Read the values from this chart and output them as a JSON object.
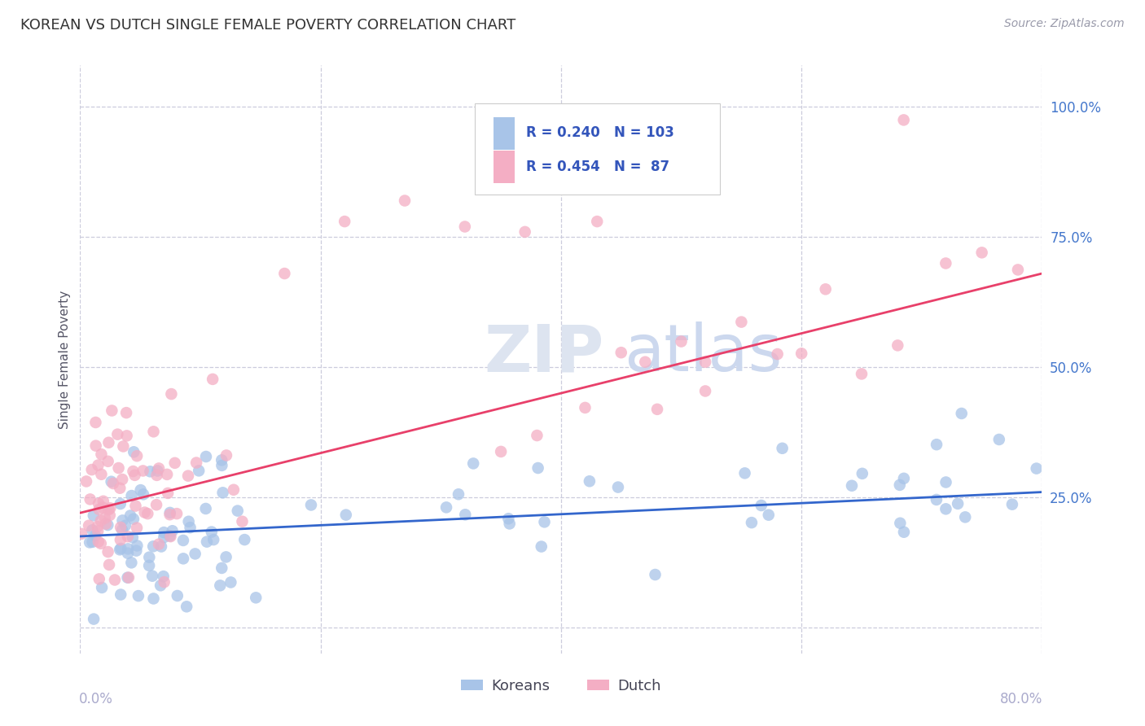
{
  "title": "KOREAN VS DUTCH SINGLE FEMALE POVERTY CORRELATION CHART",
  "source": "Source: ZipAtlas.com",
  "ylabel": "Single Female Poverty",
  "watermark": "ZIPatlas",
  "korean_R": 0.24,
  "korean_N": 103,
  "dutch_R": 0.454,
  "dutch_N": 87,
  "korean_color": "#a8c4e8",
  "dutch_color": "#f4aec4",
  "korean_line_color": "#3366cc",
  "dutch_line_color": "#e8406a",
  "background_color": "#ffffff",
  "grid_color": "#ccccdd",
  "title_color": "#333333",
  "legend_text_color": "#3355bb",
  "right_label_color": "#4477cc",
  "xlim": [
    0.0,
    0.8
  ],
  "ylim": [
    -0.05,
    1.08
  ],
  "korean_trend": [
    0.175,
    0.26
  ],
  "dutch_trend": [
    0.22,
    0.68
  ]
}
